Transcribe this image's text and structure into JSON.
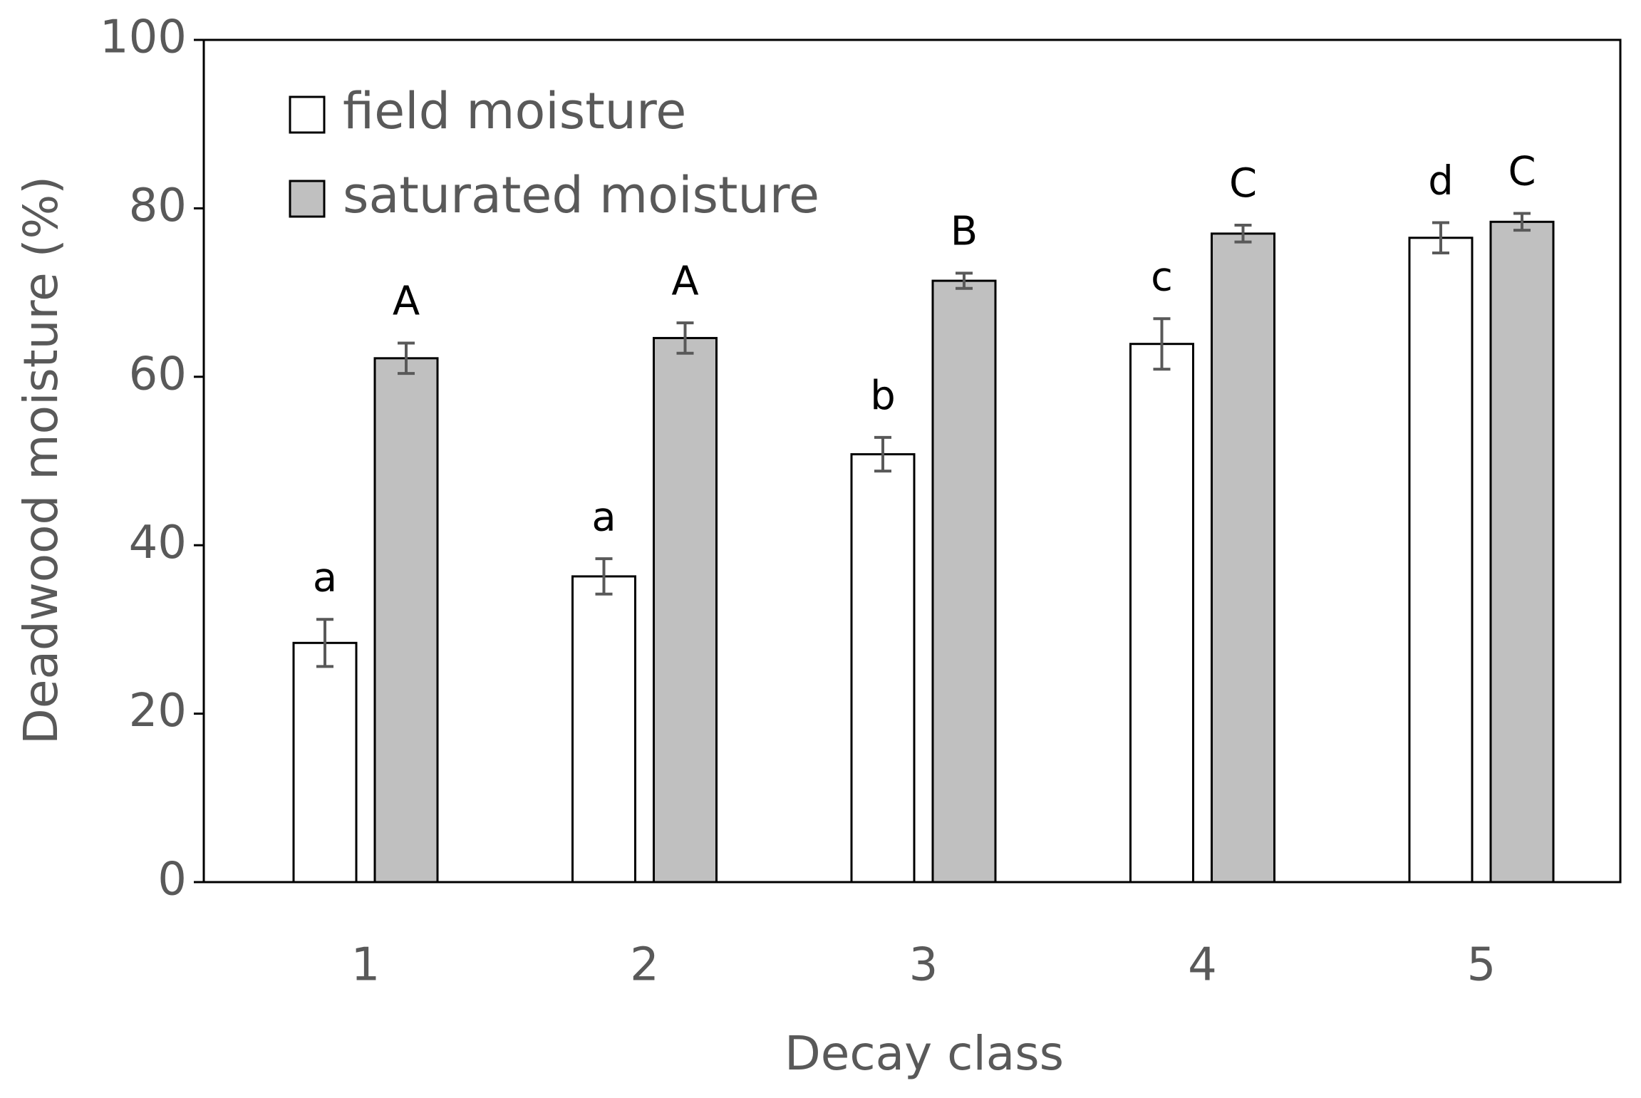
{
  "chart_data": {
    "type": "bar",
    "x_label": "Decay class",
    "y_label": "Deadwood moisture (%)",
    "categories": [
      "1",
      "2",
      "3",
      "4",
      "5"
    ],
    "series": [
      {
        "name": "field moisture",
        "color": "#ffffff",
        "values": [
          28.4,
          36.3,
          50.8,
          63.9,
          76.5
        ],
        "errors": [
          2.8,
          2.1,
          2.0,
          3.0,
          1.8
        ],
        "significance_labels": [
          "a",
          "a",
          "b",
          "c",
          "d"
        ]
      },
      {
        "name": "saturated moisture",
        "color": "#c0c0c0",
        "values": [
          62.2,
          64.6,
          71.4,
          77.0,
          78.4
        ],
        "errors": [
          1.8,
          1.8,
          0.9,
          1.0,
          1.0
        ],
        "significance_labels": [
          "A",
          "A",
          "B",
          "C",
          "C"
        ]
      }
    ],
    "ylim": [
      0,
      100
    ],
    "yticks": [
      0,
      20,
      40,
      60,
      80,
      100
    ],
    "grid": false,
    "legend": "top-left"
  }
}
